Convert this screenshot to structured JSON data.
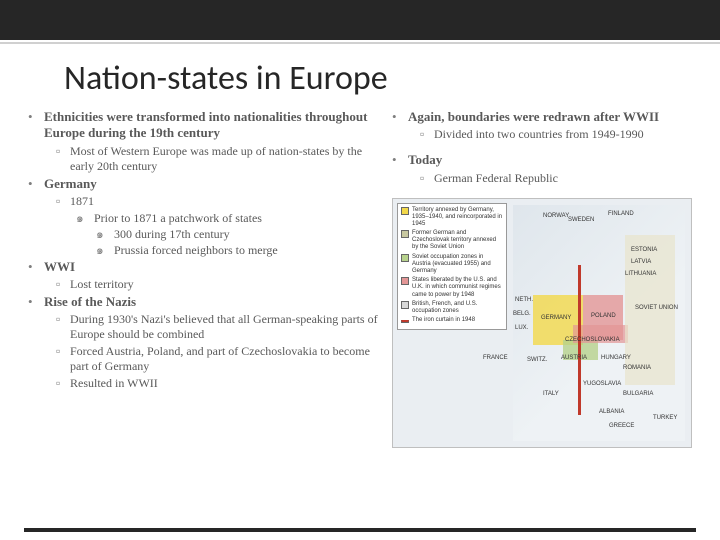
{
  "colors": {
    "top_bar": "#262626",
    "divider": "#d0d0d0",
    "title_text": "#262626",
    "body_text": "#595959",
    "bullet_mark": "#7f7f7f",
    "background": "#ffffff",
    "bottom_bar": "#262626"
  },
  "typography": {
    "title_font": "Calibri",
    "title_size_pt": 26,
    "body_font": "Georgia",
    "body_size_pt": 10
  },
  "title": "Nation-states in Europe",
  "left": {
    "b1": "Ethnicities were transformed into nationalities throughout Europe during the 19th century",
    "b1_s1": "Most of Western Europe was made up of nation-states by the early 20th century",
    "b2": "Germany",
    "b2_s1": "1871",
    "b2_s1_a": "Prior to 1871 a patchwork of states",
    "b2_s1_b": "300 during 17th century",
    "b2_s1_c": "Prussia forced neighbors to merge",
    "b3": "WWI",
    "b3_s1": "Lost territory",
    "b4": "Rise of the Nazis",
    "b4_s1": "During 1930's Nazi's believed that all German-speaking parts of Europe should be combined",
    "b4_s2": "Forced Austria, Poland, and part of Czechoslovakia to become part of Germany",
    "b4_s3": "Resulted in WWII"
  },
  "right": {
    "b1": "Again, boundaries were redrawn after WWII",
    "b1_s1": "Divided into two countries from 1949-1990",
    "b2": "Today",
    "b2_s1": "German Federal Republic"
  },
  "markers": {
    "l1": "•",
    "l2": "▫",
    "l3": "๑",
    "l4": "๑"
  },
  "map": {
    "legend": [
      {
        "color": "#f2d84a",
        "text": "Territory annexed by Germany, 1935–1940, and reincorporated in 1945"
      },
      {
        "color": "#c8c8a0",
        "text": "Former German and Czechoslovak territory annexed by the Soviet Union"
      },
      {
        "color": "#b7d28c",
        "text": "Soviet occupation zones in Austria (evacuated 1955) and Germany"
      },
      {
        "color": "#e39696",
        "text": "States liberated by the U.S. and U.K. in which communist regimes came to power by 1948"
      },
      {
        "color": "#d8d8d8",
        "text": "British, French, and U.S. occupation zones"
      },
      {
        "color": "#c0392b",
        "text": "The iron curtain in 1948",
        "line": true
      }
    ],
    "labels": [
      "NORWAY",
      "SWEDEN",
      "FINLAND",
      "ESTONIA",
      "LATVIA",
      "LITHUANIA",
      "SOVIET UNION",
      "POLAND",
      "GERMANY",
      "BELG.",
      "NETH.",
      "LUX.",
      "CZECHOSLOVAKIA",
      "AUSTRIA",
      "HUNGARY",
      "SWITZ.",
      "FRANCE",
      "ITALY",
      "YUGOSLAVIA",
      "ROMANIA",
      "BULGARIA",
      "ALBANIA",
      "GREECE",
      "TURKEY"
    ]
  }
}
